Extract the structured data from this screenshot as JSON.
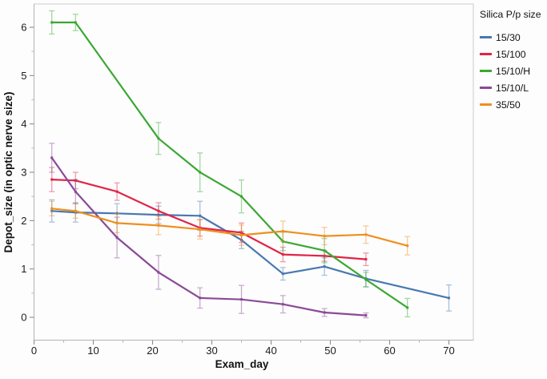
{
  "chart_data": {
    "type": "line",
    "title": "",
    "xlabel": "Exam_day",
    "ylabel": "Depot_size (in optic nerve size)",
    "legend_title": "Silica P/p size",
    "legend_position": "right",
    "grid": false,
    "error_bars": true,
    "xlim": [
      0,
      74
    ],
    "ylim": [
      -0.45,
      6.45
    ],
    "x_ticks": [
      0,
      10,
      20,
      30,
      40,
      50,
      60,
      70
    ],
    "y_ticks": [
      0,
      1,
      2,
      3,
      4,
      5,
      6
    ],
    "x_minor_step": 5,
    "y_minor_step": 0.5,
    "series": [
      {
        "name": "15/30",
        "color": "#4878b0",
        "x": [
          3,
          7,
          14,
          21,
          28,
          35,
          42,
          49,
          56,
          70
        ],
        "y": [
          2.2,
          2.17,
          2.15,
          2.12,
          2.1,
          1.6,
          0.9,
          1.05,
          0.8,
          0.4
        ],
        "err": [
          0.23,
          0.2,
          0.2,
          0.18,
          0.3,
          0.18,
          0.13,
          0.18,
          0.17,
          0.27
        ]
      },
      {
        "name": "15/100",
        "color": "#e02547",
        "x": [
          3,
          7,
          14,
          21,
          28,
          35,
          42,
          49,
          56
        ],
        "y": [
          2.85,
          2.83,
          2.6,
          2.2,
          1.85,
          1.75,
          1.3,
          1.27,
          1.2
        ],
        "err": [
          0.25,
          0.17,
          0.18,
          0.17,
          0.17,
          0.2,
          0.15,
          0.11,
          0.13
        ]
      },
      {
        "name": "15/10/H",
        "color": "#3aa832",
        "x": [
          3,
          7,
          21,
          28,
          35,
          42,
          49,
          56,
          63
        ],
        "y": [
          6.1,
          6.1,
          3.7,
          3.0,
          2.5,
          1.57,
          1.38,
          0.78,
          0.2
        ],
        "err": [
          0.24,
          0.17,
          0.33,
          0.4,
          0.34,
          0.19,
          0.25,
          0.15,
          0.19
        ]
      },
      {
        "name": "15/10/L",
        "color": "#8a4a97",
        "x": [
          3,
          7,
          14,
          21,
          28,
          35,
          42,
          49,
          56
        ],
        "y": [
          3.3,
          2.6,
          1.65,
          0.93,
          0.4,
          0.37,
          0.27,
          0.1,
          0.04
        ],
        "err": [
          0.3,
          0.25,
          0.42,
          0.35,
          0.21,
          0.29,
          0.18,
          0.08,
          0.05
        ]
      },
      {
        "name": "35/50",
        "color": "#ef8f1f",
        "x": [
          3,
          7,
          14,
          21,
          28,
          35,
          42,
          49,
          56,
          63
        ],
        "y": [
          2.25,
          2.2,
          1.95,
          1.9,
          1.82,
          1.7,
          1.78,
          1.68,
          1.71,
          1.48
        ],
        "err": [
          0.15,
          0.15,
          0.2,
          0.19,
          0.2,
          0.21,
          0.21,
          0.18,
          0.18,
          0.19
        ]
      }
    ]
  }
}
